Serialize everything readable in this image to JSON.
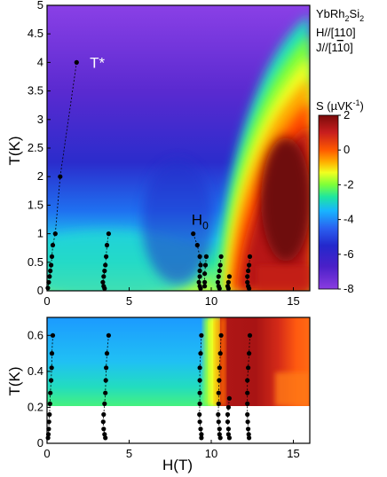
{
  "material": {
    "base": "YbRh",
    "sub1": "2",
    "mid": "Si",
    "sub2": "2"
  },
  "field_direction": "H//[110]",
  "current_direction": {
    "prefix": "J//[1",
    "bar": "1",
    "suffix": "0]"
  },
  "colorbar": {
    "label_pre": "S (µVK",
    "label_sup": "-1",
    "label_post": ")",
    "ticks": [
      2,
      0,
      -2,
      -4,
      -6,
      -8
    ],
    "colors": [
      "#7a0a0a",
      "#c81e1e",
      "#ff5a00",
      "#ffb000",
      "#f0ff20",
      "#7cff3a",
      "#1ee6a0",
      "#18b4ff",
      "#2a60f0",
      "#2328cc",
      "#4a20c8",
      "#8a3ce0"
    ]
  },
  "chart_data": [
    {
      "type": "heatmap",
      "panel": "top",
      "xlabel": "",
      "ylabel": "T(K)",
      "xlim": [
        0,
        16
      ],
      "ylim": [
        0,
        5
      ],
      "xticks": [
        0,
        5,
        10,
        15
      ],
      "yticks": [
        0,
        0.5,
        1,
        1.5,
        2,
        2.5,
        3,
        3.5,
        4,
        4.5,
        5
      ],
      "zlabel": "S (µVK-1)",
      "zlim": [
        -8,
        2
      ],
      "annotations": [
        {
          "text": "T*",
          "x": 2.6,
          "y": 4.0
        },
        {
          "text": "H",
          "sub": "0",
          "x": 8.8,
          "y": 1.25
        }
      ],
      "series": [
        {
          "points": [
            [
              1.8,
              4.0
            ],
            [
              0.8,
              2.0
            ],
            [
              0.5,
              1.0
            ],
            [
              0.35,
              0.8
            ],
            [
              0.3,
              0.6
            ],
            [
              0.25,
              0.45
            ],
            [
              0.2,
              0.35
            ],
            [
              0.15,
              0.25
            ],
            [
              0.1,
              0.15
            ],
            [
              0.05,
              0.05
            ]
          ]
        },
        {
          "points": [
            [
              3.75,
              1.0
            ],
            [
              3.65,
              0.8
            ],
            [
              3.6,
              0.6
            ],
            [
              3.55,
              0.45
            ],
            [
              3.5,
              0.35
            ],
            [
              3.45,
              0.25
            ],
            [
              3.4,
              0.15
            ],
            [
              3.45,
              0.08
            ],
            [
              3.5,
              0.04
            ]
          ]
        },
        {
          "points": [
            [
              8.9,
              1.0
            ],
            [
              9.15,
              0.8
            ],
            [
              9.3,
              0.6
            ],
            [
              9.35,
              0.45
            ],
            [
              9.3,
              0.35
            ],
            [
              9.3,
              0.25
            ],
            [
              9.25,
              0.15
            ],
            [
              9.3,
              0.08
            ],
            [
              9.35,
              0.04
            ]
          ]
        },
        {
          "points": [
            [
              9.7,
              0.6
            ],
            [
              9.65,
              0.45
            ],
            [
              9.6,
              0.3
            ],
            [
              9.6,
              0.15
            ],
            [
              9.6,
              0.08
            ]
          ]
        },
        {
          "points": [
            [
              10.6,
              0.6
            ],
            [
              10.55,
              0.45
            ],
            [
              10.5,
              0.35
            ],
            [
              10.45,
              0.25
            ],
            [
              10.4,
              0.15
            ],
            [
              10.45,
              0.08
            ],
            [
              10.5,
              0.04
            ]
          ]
        },
        {
          "points": [
            [
              11.1,
              0.25
            ],
            [
              11.05,
              0.15
            ],
            [
              11.0,
              0.08
            ],
            [
              11.05,
              0.04
            ]
          ]
        },
        {
          "points": [
            [
              12.35,
              0.6
            ],
            [
              12.3,
              0.45
            ],
            [
              12.25,
              0.35
            ],
            [
              12.2,
              0.25
            ],
            [
              12.2,
              0.15
            ],
            [
              12.25,
              0.08
            ],
            [
              12.3,
              0.04
            ]
          ]
        }
      ]
    },
    {
      "type": "heatmap",
      "panel": "bottom",
      "xlabel": "H(T)",
      "ylabel": "T(K)",
      "xlim": [
        0,
        16
      ],
      "ylim": [
        0,
        0.7
      ],
      "xticks": [
        0,
        5,
        10,
        15
      ],
      "yticks": [
        0,
        0.2,
        0.4,
        0.6
      ],
      "data_floor_T": 0.12,
      "series": [
        {
          "points": [
            [
              0.35,
              0.6
            ],
            [
              0.3,
              0.5
            ],
            [
              0.28,
              0.42
            ],
            [
              0.25,
              0.35
            ],
            [
              0.2,
              0.28
            ],
            [
              0.18,
              0.22
            ],
            [
              0.15,
              0.16
            ],
            [
              0.12,
              0.12
            ],
            [
              0.1,
              0.08
            ],
            [
              0.08,
              0.05
            ],
            [
              0.06,
              0.03
            ]
          ]
        },
        {
          "points": [
            [
              3.75,
              0.6
            ],
            [
              3.65,
              0.5
            ],
            [
              3.6,
              0.42
            ],
            [
              3.58,
              0.35
            ],
            [
              3.55,
              0.28
            ],
            [
              3.5,
              0.22
            ],
            [
              3.45,
              0.16
            ],
            [
              3.42,
              0.12
            ],
            [
              3.45,
              0.08
            ],
            [
              3.5,
              0.05
            ],
            [
              3.55,
              0.03
            ]
          ]
        },
        {
          "points": [
            [
              9.4,
              0.6
            ],
            [
              9.35,
              0.5
            ],
            [
              9.3,
              0.42
            ],
            [
              9.3,
              0.35
            ],
            [
              9.3,
              0.28
            ],
            [
              9.3,
              0.22
            ],
            [
              9.28,
              0.16
            ],
            [
              9.3,
              0.12
            ],
            [
              9.35,
              0.08
            ],
            [
              9.4,
              0.05
            ],
            [
              9.4,
              0.03
            ]
          ]
        },
        {
          "points": [
            [
              10.6,
              0.6
            ],
            [
              10.55,
              0.5
            ],
            [
              10.5,
              0.42
            ],
            [
              10.48,
              0.35
            ],
            [
              10.45,
              0.28
            ],
            [
              10.45,
              0.22
            ],
            [
              10.42,
              0.16
            ],
            [
              10.45,
              0.12
            ],
            [
              10.5,
              0.08
            ],
            [
              10.5,
              0.05
            ],
            [
              10.55,
              0.03
            ]
          ]
        },
        {
          "points": [
            [
              11.1,
              0.25
            ],
            [
              11.05,
              0.2
            ],
            [
              11.0,
              0.16
            ],
            [
              11.0,
              0.12
            ],
            [
              11.05,
              0.08
            ],
            [
              11.05,
              0.05
            ],
            [
              11.1,
              0.03
            ]
          ]
        },
        {
          "points": [
            [
              12.35,
              0.6
            ],
            [
              12.3,
              0.5
            ],
            [
              12.25,
              0.42
            ],
            [
              12.2,
              0.35
            ],
            [
              12.2,
              0.28
            ],
            [
              12.2,
              0.22
            ],
            [
              12.2,
              0.16
            ],
            [
              12.22,
              0.12
            ],
            [
              12.25,
              0.08
            ],
            [
              12.28,
              0.05
            ],
            [
              12.3,
              0.03
            ]
          ]
        }
      ]
    }
  ]
}
